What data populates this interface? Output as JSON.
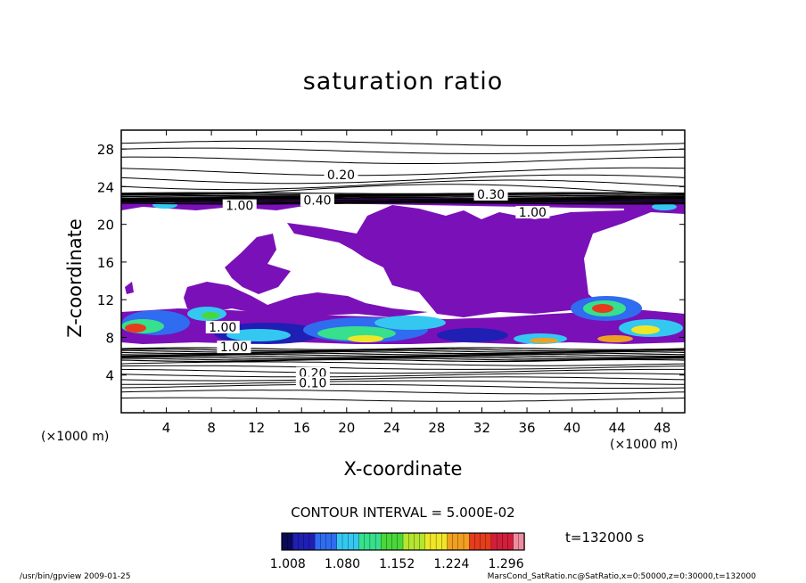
{
  "chart_data": {
    "type": "heatmap",
    "title": "saturation ratio",
    "xlabel": "X-coordinate",
    "ylabel": "Z-coordinate",
    "x_unit": "(×1000 m)",
    "xlim": [
      0,
      50
    ],
    "ylim": [
      0,
      30
    ],
    "xticks": [
      4,
      8,
      12,
      16,
      20,
      24,
      28,
      32,
      36,
      40,
      44,
      48
    ],
    "yticks": [
      4,
      8,
      12,
      16,
      20,
      24,
      28
    ],
    "contour_interval_text": "CONTOUR INTERVAL = 5.000E-02",
    "contour_labels": [
      {
        "text": "0.20",
        "x": 19.5,
        "z": 25.1
      },
      {
        "text": "0.30",
        "x": 32.8,
        "z": 23.0
      },
      {
        "text": "0.40",
        "x": 17.4,
        "z": 22.4
      },
      {
        "text": "1.00",
        "x": 10.5,
        "z": 21.8
      },
      {
        "text": "1.00",
        "x": 36.5,
        "z": 21.1
      },
      {
        "text": "1.00",
        "x": 9.0,
        "z": 8.9
      },
      {
        "text": "1.00",
        "x": 10.0,
        "z": 6.8
      },
      {
        "text": "0.20",
        "x": 17.0,
        "z": 4.0
      },
      {
        "text": "0.10",
        "x": 17.0,
        "z": 3.0
      }
    ],
    "colorbar": {
      "tick_labels": [
        "1.008",
        "1.080",
        "1.152",
        "1.224",
        "1.296"
      ],
      "range": [
        1.0,
        1.32
      ],
      "colors": [
        "#0a0a5a",
        "#1f1fb4",
        "#2f6cf0",
        "#34c8f0",
        "#37e08c",
        "#49d83a",
        "#b4e62e",
        "#f0e628",
        "#f0a020",
        "#e63c1c",
        "#d21e3c",
        "#f08ca0"
      ]
    },
    "time": "t=132000 s"
  },
  "footer": {
    "left": "/usr/bin/gpview   2009-01-25",
    "right": "MarsCond_SatRatio.nc@SatRatio,x=0:50000,z=0:30000,t=132000"
  },
  "colors": {
    "supersaturated_fill": "#7a10b8",
    "contour_line": "#000000",
    "background": "#ffffff"
  }
}
